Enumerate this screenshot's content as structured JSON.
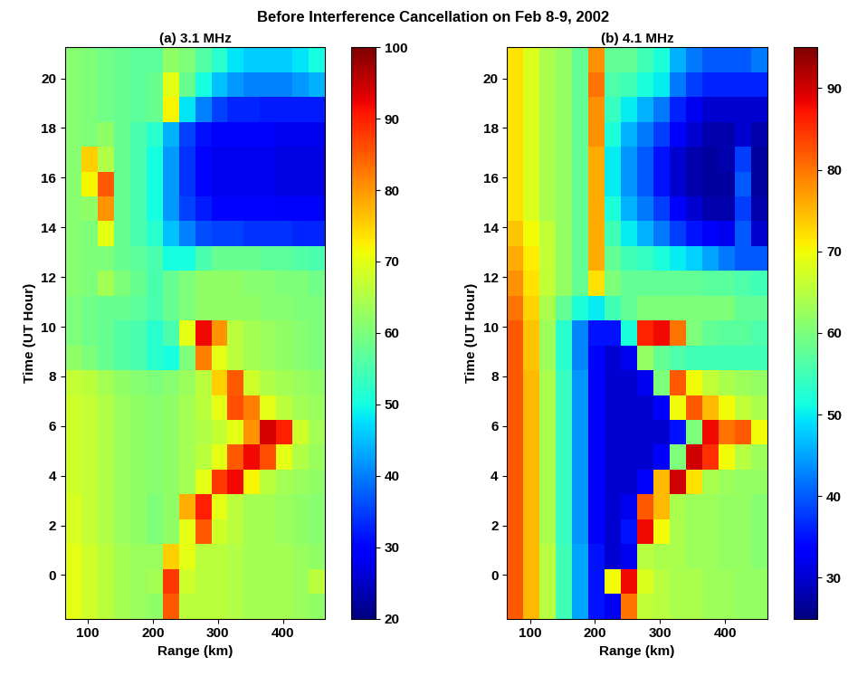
{
  "title": "Before Interference Cancellation on Feb 8-9, 2002",
  "chart_data": [
    {
      "type": "heatmap",
      "title": "(a) 3.1 MHz",
      "xlabel": "Range (km)",
      "ylabel": "Time (UT Hour)",
      "xlim": [
        65,
        465
      ],
      "ylim": [
        -1.75,
        21.25
      ],
      "xticks": [
        100,
        200,
        300,
        400
      ],
      "yticks": [
        0,
        2,
        4,
        6,
        8,
        10,
        12,
        14,
        16,
        18,
        20
      ],
      "x_edges": [
        65,
        90,
        115,
        140,
        165,
        190,
        215,
        240,
        265,
        290,
        315,
        340,
        365,
        390,
        415,
        440,
        465
      ],
      "y_edges": [
        -1.75,
        -0.75,
        0.25,
        1.25,
        2.25,
        3.25,
        4.25,
        5.25,
        6.25,
        7.25,
        8.25,
        9.25,
        10.25,
        11.25,
        12.25,
        13.25,
        14.25,
        15.25,
        16.25,
        17.25,
        18.25,
        19.25,
        20.25,
        21.25
      ],
      "colorbar_range": [
        20,
        100
      ],
      "colorbar_ticks": [
        20,
        30,
        40,
        50,
        60,
        70,
        80,
        90,
        100
      ],
      "cells": [
        [
          70,
          68,
          66,
          64,
          63,
          62,
          85,
          66,
          66,
          66,
          65,
          64,
          64,
          64,
          63,
          62
        ],
        [
          70,
          68,
          66,
          64,
          63,
          64,
          88,
          68,
          66,
          66,
          65,
          64,
          64,
          64,
          63,
          66
        ],
        [
          70,
          68,
          66,
          64,
          63,
          63,
          75,
          70,
          66,
          66,
          65,
          64,
          64,
          64,
          63,
          62
        ],
        [
          69,
          67,
          65,
          63,
          62,
          60,
          62,
          70,
          85,
          68,
          66,
          64,
          64,
          63,
          62,
          61
        ],
        [
          69,
          67,
          65,
          63,
          62,
          60,
          62,
          78,
          90,
          70,
          66,
          64,
          64,
          63,
          62,
          61
        ],
        [
          68,
          67,
          65,
          63,
          62,
          61,
          62,
          64,
          70,
          88,
          92,
          72,
          66,
          64,
          63,
          62
        ],
        [
          68,
          67,
          65,
          63,
          62,
          61,
          62,
          64,
          66,
          70,
          85,
          92,
          86,
          70,
          65,
          63
        ],
        [
          68,
          67,
          65,
          63,
          62,
          61,
          62,
          64,
          65,
          67,
          70,
          80,
          94,
          90,
          68,
          64
        ],
        [
          68,
          67,
          65,
          63,
          62,
          61,
          62,
          64,
          66,
          70,
          86,
          82,
          70,
          66,
          64,
          63
        ],
        [
          67,
          66,
          64,
          62,
          61,
          60,
          61,
          63,
          66,
          75,
          85,
          68,
          65,
          64,
          63,
          62
        ],
        [
          62,
          60,
          58,
          56,
          55,
          52,
          50,
          60,
          82,
          70,
          66,
          64,
          63,
          62,
          61,
          60
        ],
        [
          60,
          59,
          58,
          56,
          55,
          52,
          55,
          70,
          92,
          80,
          66,
          64,
          63,
          62,
          61,
          60
        ],
        [
          60,
          59,
          58,
          58,
          57,
          55,
          58,
          60,
          62,
          62,
          62,
          62,
          61,
          61,
          60,
          60
        ],
        [
          61,
          60,
          64,
          60,
          58,
          55,
          58,
          60,
          62,
          62,
          62,
          61,
          61,
          60,
          60,
          59
        ],
        [
          61,
          60,
          60,
          58,
          57,
          55,
          50,
          50,
          55,
          58,
          58,
          58,
          57,
          57,
          56,
          55
        ],
        [
          61,
          60,
          70,
          58,
          55,
          52,
          45,
          40,
          36,
          35,
          35,
          34,
          34,
          34,
          33,
          33
        ],
        [
          61,
          62,
          80,
          58,
          55,
          50,
          42,
          35,
          32,
          30,
          30,
          30,
          30,
          29,
          29,
          29
        ],
        [
          61,
          72,
          85,
          58,
          55,
          50,
          42,
          34,
          30,
          28,
          28,
          28,
          28,
          27,
          27,
          27
        ],
        [
          61,
          75,
          65,
          58,
          55,
          50,
          42,
          34,
          30,
          28,
          28,
          28,
          28,
          27,
          27,
          27
        ],
        [
          61,
          60,
          62,
          58,
          55,
          52,
          44,
          35,
          31,
          29,
          29,
          29,
          29,
          28,
          28,
          28
        ],
        [
          61,
          60,
          59,
          58,
          57,
          58,
          72,
          48,
          40,
          35,
          33,
          33,
          32,
          32,
          32,
          32
        ],
        [
          61,
          60,
          59,
          58,
          57,
          58,
          70,
          58,
          50,
          45,
          42,
          40,
          40,
          40,
          42,
          44
        ],
        [
          61,
          60,
          59,
          58,
          57,
          57,
          62,
          60,
          56,
          52,
          48,
          46,
          46,
          46,
          48,
          50
        ]
      ]
    },
    {
      "type": "heatmap",
      "title": "(b) 4.1 MHz",
      "xlabel": "Range (km)",
      "ylabel": "Time (UT Hour)",
      "xlim": [
        65,
        465
      ],
      "ylim": [
        -1.75,
        21.25
      ],
      "xticks": [
        100,
        200,
        300,
        400
      ],
      "yticks": [
        0,
        2,
        4,
        6,
        8,
        10,
        12,
        14,
        16,
        18,
        20
      ],
      "x_edges": [
        65,
        90,
        115,
        140,
        165,
        190,
        215,
        240,
        265,
        290,
        315,
        340,
        365,
        390,
        415,
        440,
        465
      ],
      "y_edges": [
        -1.75,
        -0.75,
        0.25,
        1.25,
        2.25,
        3.25,
        4.25,
        5.25,
        6.25,
        7.25,
        8.25,
        9.25,
        10.25,
        11.25,
        12.25,
        13.25,
        14.25,
        15.25,
        16.25,
        17.25,
        18.25,
        19.25,
        20.25,
        21.25
      ],
      "colorbar_range": [
        25,
        95
      ],
      "colorbar_ticks": [
        30,
        40,
        50,
        60,
        70,
        80,
        90
      ],
      "cells": [
        [
          82,
          75,
          65,
          55,
          45,
          35,
          32,
          80,
          66,
          65,
          64,
          64,
          63,
          63,
          62,
          62
        ],
        [
          82,
          75,
          65,
          55,
          45,
          35,
          70,
          88,
          68,
          65,
          64,
          64,
          63,
          63,
          62,
          62
        ],
        [
          82,
          75,
          65,
          55,
          45,
          35,
          30,
          32,
          65,
          64,
          64,
          63,
          63,
          62,
          62,
          61
        ],
        [
          82,
          75,
          64,
          54,
          44,
          33,
          30,
          35,
          88,
          70,
          64,
          63,
          63,
          62,
          62,
          61
        ],
        [
          82,
          75,
          64,
          54,
          44,
          33,
          30,
          32,
          82,
          75,
          64,
          63,
          63,
          62,
          62,
          61
        ],
        [
          82,
          75,
          64,
          54,
          44,
          33,
          30,
          30,
          33,
          75,
          90,
          72,
          64,
          63,
          62,
          62
        ],
        [
          82,
          75,
          64,
          54,
          44,
          33,
          30,
          30,
          30,
          33,
          60,
          90,
          85,
          70,
          65,
          63
        ],
        [
          82,
          75,
          64,
          54,
          44,
          33,
          30,
          30,
          30,
          30,
          35,
          60,
          88,
          80,
          82,
          70
        ],
        [
          82,
          75,
          64,
          54,
          44,
          33,
          30,
          30,
          30,
          33,
          70,
          82,
          75,
          70,
          66,
          64
        ],
        [
          82,
          75,
          64,
          54,
          44,
          33,
          30,
          30,
          32,
          60,
          82,
          70,
          66,
          64,
          63,
          62
        ],
        [
          82,
          74,
          63,
          53,
          43,
          33,
          30,
          32,
          62,
          58,
          56,
          55,
          55,
          55,
          55,
          55
        ],
        [
          82,
          74,
          63,
          53,
          43,
          35,
          35,
          52,
          86,
          88,
          80,
          60,
          58,
          57,
          57,
          56
        ],
        [
          80,
          73,
          64,
          58,
          52,
          50,
          55,
          58,
          60,
          60,
          60,
          60,
          60,
          60,
          58,
          58
        ],
        [
          78,
          72,
          66,
          62,
          58,
          72,
          60,
          58,
          58,
          58,
          58,
          58,
          57,
          57,
          56,
          55
        ],
        [
          76,
          71,
          66,
          62,
          58,
          76,
          58,
          55,
          54,
          52,
          50,
          48,
          45,
          42,
          40,
          40
        ],
        [
          74,
          70,
          66,
          62,
          58,
          76,
          55,
          50,
          46,
          42,
          38,
          35,
          33,
          32,
          40,
          30
        ],
        [
          72,
          68,
          64,
          62,
          58,
          76,
          52,
          46,
          42,
          38,
          33,
          30,
          28,
          28,
          38,
          28
        ],
        [
          72,
          68,
          64,
          62,
          58,
          76,
          50,
          44,
          40,
          35,
          30,
          28,
          27,
          27,
          40,
          27
        ],
        [
          72,
          68,
          64,
          62,
          58,
          76,
          50,
          44,
          40,
          35,
          30,
          28,
          27,
          28,
          38,
          27
        ],
        [
          72,
          68,
          64,
          62,
          58,
          78,
          52,
          46,
          42,
          38,
          33,
          30,
          28,
          28,
          30,
          28
        ],
        [
          72,
          68,
          64,
          62,
          58,
          78,
          54,
          50,
          46,
          42,
          36,
          32,
          30,
          30,
          30,
          30
        ],
        [
          72,
          68,
          64,
          62,
          58,
          80,
          56,
          55,
          52,
          50,
          42,
          38,
          36,
          36,
          36,
          36
        ],
        [
          72,
          68,
          64,
          62,
          58,
          78,
          58,
          58,
          55,
          52,
          46,
          42,
          40,
          40,
          40,
          42
        ]
      ]
    }
  ]
}
